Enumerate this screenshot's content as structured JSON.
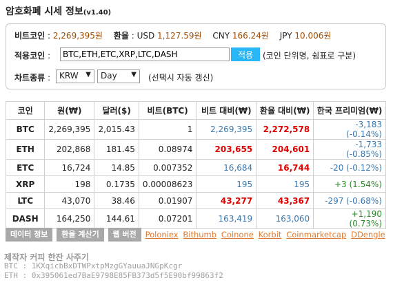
{
  "header": {
    "title": "암호화폐 시세 정보",
    "version": "(v1.40)"
  },
  "rates": {
    "btc_label": "비트코인",
    "btc_value": "2,269,395원",
    "fx_label": "환율",
    "usd_label": "USD",
    "usd_value": "1,127.59원",
    "cny_label": "CNY",
    "cny_value": "166.24원",
    "jpy_label": "JPY",
    "jpy_value": "10.006원"
  },
  "apply_coins": {
    "label": "적용코인",
    "value": "BTC,ETH,ETC,XRP,LTC,DASH",
    "button": "적용",
    "hint": "(코인 단위명, 쉼표로 구분)"
  },
  "chart_type": {
    "label": "차트종류",
    "currency": "KRW",
    "period": "Day",
    "hint": "(선택시 자동 갱신)"
  },
  "table": {
    "headers": [
      "코인",
      "원(₩)",
      "달러($)",
      "비트(BTC)",
      "비트 대비(₩)",
      "환율 대비(₩)",
      "한국 프리미엄(₩)"
    ],
    "rows": [
      {
        "coin": "BTC",
        "krw": "2,269,395",
        "usd": "2,015.43",
        "btc": "1",
        "vs_btc": "2,269,395",
        "vs_btc_style": "blue",
        "vs_fx": "2,272,578",
        "vs_fx_style": "red",
        "premium": "-3,183 (-0.14%)",
        "premium_style": "neg"
      },
      {
        "coin": "ETH",
        "krw": "202,868",
        "usd": "181.45",
        "btc": "0.08974",
        "vs_btc": "203,655",
        "vs_btc_style": "red",
        "vs_fx": "204,601",
        "vs_fx_style": "red",
        "premium": "-1,733 (-0.85%)",
        "premium_style": "neg"
      },
      {
        "coin": "ETC",
        "krw": "16,724",
        "usd": "14.85",
        "btc": "0.007352",
        "vs_btc": "16,684",
        "vs_btc_style": "blue",
        "vs_fx": "16,744",
        "vs_fx_style": "red",
        "premium": "-20 (-0.12%)",
        "premium_style": "neg"
      },
      {
        "coin": "XRP",
        "krw": "198",
        "usd": "0.1735",
        "btc": "0.00008623",
        "vs_btc": "195",
        "vs_btc_style": "blue",
        "vs_fx": "195",
        "vs_fx_style": "blue",
        "premium": "+3 (1.54%)",
        "premium_style": "pos"
      },
      {
        "coin": "LTC",
        "krw": "43,070",
        "usd": "38.46",
        "btc": "0.01907",
        "vs_btc": "43,277",
        "vs_btc_style": "red",
        "vs_fx": "43,367",
        "vs_fx_style": "red",
        "premium": "-297 (-0.68%)",
        "premium_style": "neg"
      },
      {
        "coin": "DASH",
        "krw": "164,250",
        "usd": "144.61",
        "btc": "0.07201",
        "vs_btc": "163,419",
        "vs_btc_style": "blue",
        "vs_fx": "163,060",
        "vs_fx_style": "blue",
        "premium": "+1,190 (0.73%)",
        "premium_style": "pos"
      }
    ]
  },
  "buttons": [
    "데이터 정보",
    "환율 계산기",
    "웹 버전"
  ],
  "links": [
    "Poloniex",
    "Bithumb",
    "Coinone",
    "Korbit",
    "Coinmarketcap",
    "DDengle"
  ],
  "footer": {
    "title": "제작자 커피 한잔 사주기",
    "btc": "BTC : 1KXqicbBxDTWPxtpMzgGYauuaJNGpKcgr",
    "eth": "ETH : 0x395061ed7BaE9798E85FB373d5f5E90bf99863f2"
  },
  "colors": {
    "accent": "#29b6f6",
    "value": "#a04a00",
    "up": "#e00000",
    "down": "#3a78b0",
    "premium_pos": "#2a8a2a",
    "link": "#e07a30",
    "gray_button": "#a8a8a8"
  }
}
